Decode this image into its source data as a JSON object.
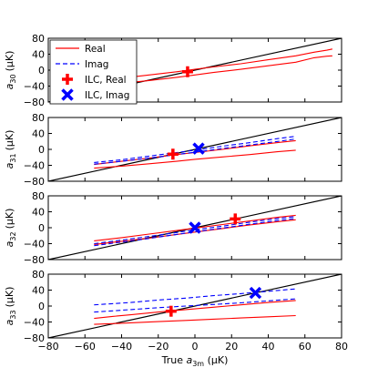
{
  "chart_data": [
    {
      "type": "line",
      "ylabel": "a30 (μK)",
      "ylabel_main": "a",
      "ylabel_sub": "30",
      "ylabel_unit": "(μK)",
      "xlim": [
        -80,
        80
      ],
      "ylim": [
        -80,
        80
      ],
      "xticks": [
        -80,
        -60,
        -40,
        -20,
        0,
        20,
        40,
        60,
        80
      ],
      "yticks": [
        -80,
        -40,
        0,
        40,
        80
      ],
      "grid": false,
      "legend": "top-left",
      "identity_line": {
        "x": [
          -80,
          80
        ],
        "y": [
          -80,
          80
        ]
      },
      "series": [
        {
          "name": "Real",
          "role": "band",
          "style": "solid",
          "color": "#ff0000",
          "x": [
            -55,
            -40,
            -25,
            -10,
            0,
            10,
            25,
            40,
            55,
            65,
            72,
            75
          ],
          "y": [
            -40,
            -33,
            -26,
            -18,
            -12,
            -6,
            2,
            11,
            20,
            31,
            35,
            36
          ]
        },
        {
          "name": "Real",
          "role": "band",
          "style": "solid",
          "color": "#ff0000",
          "x": [
            -55,
            -40,
            -25,
            -10,
            0,
            10,
            25,
            40,
            55,
            65,
            72,
            75
          ],
          "y": [
            -27,
            -20,
            -12,
            -4,
            2,
            8,
            16,
            26,
            36,
            45,
            50,
            53
          ]
        },
        {
          "name": "ILC, Real",
          "role": "marker",
          "marker": "plus",
          "color": "#ff0000",
          "x": [
            -4
          ],
          "y": [
            -4
          ]
        }
      ]
    },
    {
      "type": "line",
      "ylabel": "a31 (μK)",
      "ylabel_main": "a",
      "ylabel_sub": "31",
      "ylabel_unit": "(μK)",
      "xlim": [
        -80,
        80
      ],
      "ylim": [
        -80,
        80
      ],
      "xticks": [
        -80,
        -60,
        -40,
        -20,
        0,
        20,
        40,
        60,
        80
      ],
      "yticks": [
        -80,
        -40,
        0,
        40,
        80
      ],
      "identity_line": {
        "x": [
          -80,
          80
        ],
        "y": [
          -80,
          80
        ]
      },
      "series": [
        {
          "name": "Real",
          "role": "band",
          "style": "solid",
          "color": "#ff0000",
          "x": [
            -55,
            -40,
            -25,
            -10,
            0,
            15,
            30,
            45,
            55
          ],
          "y": [
            -47,
            -42,
            -36,
            -30,
            -25,
            -19,
            -13,
            -6,
            -2
          ]
        },
        {
          "name": "Real",
          "role": "band",
          "style": "solid",
          "color": "#ff0000",
          "x": [
            -55,
            -40,
            -25,
            -10,
            0,
            15,
            30,
            45,
            55
          ],
          "y": [
            -38,
            -30,
            -22,
            -13,
            -8,
            0,
            9,
            17,
            22
          ]
        },
        {
          "name": "Imag",
          "role": "band",
          "style": "dashed",
          "color": "#0000ff",
          "x": [
            -55,
            -40,
            -25,
            -10,
            0,
            15,
            30,
            45,
            55
          ],
          "y": [
            -37,
            -30,
            -22,
            -13,
            -7,
            2,
            11,
            20,
            26
          ]
        },
        {
          "name": "Imag",
          "role": "band",
          "style": "dashed",
          "color": "#0000ff",
          "x": [
            -55,
            -40,
            -25,
            -10,
            0,
            15,
            30,
            45,
            55
          ],
          "y": [
            -33,
            -26,
            -17,
            -8,
            -2,
            8,
            17,
            27,
            33
          ]
        },
        {
          "name": "ILC, Real",
          "role": "marker",
          "marker": "plus",
          "color": "#ff0000",
          "x": [
            -12
          ],
          "y": [
            -12
          ]
        },
        {
          "name": "ILC, Imag",
          "role": "marker",
          "marker": "x",
          "color": "#0000ff",
          "x": [
            2
          ],
          "y": [
            2
          ]
        }
      ]
    },
    {
      "type": "line",
      "ylabel": "a32 (μK)",
      "ylabel_main": "a",
      "ylabel_sub": "32",
      "ylabel_unit": "(μK)",
      "xlim": [
        -80,
        80
      ],
      "ylim": [
        -80,
        80
      ],
      "xticks": [
        -80,
        -60,
        -40,
        -20,
        0,
        20,
        40,
        60,
        80
      ],
      "yticks": [
        -80,
        -40,
        0,
        40,
        80
      ],
      "identity_line": {
        "x": [
          -80,
          80
        ],
        "y": [
          -80,
          80
        ]
      },
      "series": [
        {
          "name": "Real",
          "role": "band",
          "style": "solid",
          "color": "#ff0000",
          "x": [
            -55,
            -40,
            -25,
            -10,
            0,
            15,
            30,
            45,
            55
          ],
          "y": [
            -42,
            -34,
            -26,
            -17,
            -11,
            -2,
            7,
            15,
            20
          ]
        },
        {
          "name": "Real",
          "role": "band",
          "style": "solid",
          "color": "#ff0000",
          "x": [
            -55,
            -40,
            -25,
            -10,
            0,
            15,
            30,
            45,
            55
          ],
          "y": [
            -33,
            -25,
            -16,
            -7,
            -1,
            8,
            17,
            26,
            31
          ]
        },
        {
          "name": "Imag",
          "role": "band",
          "style": "dashed",
          "color": "#0000ff",
          "x": [
            -55,
            -40,
            -25,
            -10,
            0,
            15,
            30,
            45,
            55
          ],
          "y": [
            -45,
            -36,
            -27,
            -17,
            -10,
            -1,
            9,
            18,
            23
          ]
        },
        {
          "name": "Imag",
          "role": "band",
          "style": "dashed",
          "color": "#0000ff",
          "x": [
            -55,
            -40,
            -25,
            -10,
            0,
            15,
            30,
            45,
            55
          ],
          "y": [
            -40,
            -31,
            -22,
            -12,
            -5,
            4,
            14,
            23,
            28
          ]
        },
        {
          "name": "ILC, Real",
          "role": "marker",
          "marker": "plus",
          "color": "#ff0000",
          "x": [
            22
          ],
          "y": [
            22
          ]
        },
        {
          "name": "ILC, Imag",
          "role": "marker",
          "marker": "x",
          "color": "#0000ff",
          "x": [
            0
          ],
          "y": [
            0
          ]
        }
      ]
    },
    {
      "type": "line",
      "xlabel": "True a3m (μK)",
      "xlabel_main": "True ",
      "xlabel_var": "a",
      "xlabel_sub": "3m",
      "xlabel_unit": " (μK)",
      "ylabel": "a33 (μK)",
      "ylabel_main": "a",
      "ylabel_sub": "33",
      "ylabel_unit": "(μK)",
      "xlim": [
        -80,
        80
      ],
      "ylim": [
        -80,
        80
      ],
      "xticks": [
        -80,
        -60,
        -40,
        -20,
        0,
        20,
        40,
        60,
        80
      ],
      "yticks": [
        -80,
        -40,
        0,
        40,
        80
      ],
      "identity_line": {
        "x": [
          -80,
          80
        ],
        "y": [
          -80,
          80
        ]
      },
      "series": [
        {
          "name": "Real",
          "role": "band",
          "style": "solid",
          "color": "#ff0000",
          "x": [
            -55,
            -45,
            -35,
            -20,
            -5,
            10,
            25,
            40,
            55
          ],
          "y": [
            -46,
            -44,
            -42,
            -39,
            -36,
            -33,
            -30,
            -27,
            -24
          ]
        },
        {
          "name": "Real",
          "role": "band",
          "style": "solid",
          "color": "#ff0000",
          "x": [
            -55,
            -45,
            -35,
            -20,
            -5,
            10,
            25,
            40,
            55
          ],
          "y": [
            -31,
            -26,
            -22,
            -15,
            -9,
            -3,
            3,
            9,
            14
          ]
        },
        {
          "name": "Imag",
          "role": "band",
          "style": "dashed",
          "color": "#0000ff",
          "x": [
            -55,
            -45,
            -35,
            -20,
            -5,
            10,
            25,
            40,
            55
          ],
          "y": [
            -15,
            -12,
            -9,
            -4,
            0,
            4,
            8,
            13,
            18
          ]
        },
        {
          "name": "Imag",
          "role": "band",
          "style": "dashed",
          "color": "#0000ff",
          "x": [
            -55,
            -45,
            -35,
            -20,
            -5,
            10,
            25,
            40,
            55
          ],
          "y": [
            3,
            6,
            9,
            15,
            20,
            26,
            31,
            37,
            43
          ]
        },
        {
          "name": "ILC, Real",
          "role": "marker",
          "marker": "plus",
          "color": "#ff0000",
          "x": [
            -13
          ],
          "y": [
            -13
          ]
        },
        {
          "name": "ILC, Imag",
          "role": "marker",
          "marker": "x",
          "color": "#0000ff",
          "x": [
            33
          ],
          "y": [
            33
          ]
        }
      ]
    }
  ],
  "legend": {
    "items": [
      {
        "label": "Real",
        "kind": "line-solid",
        "color": "#ff0000"
      },
      {
        "label": "Imag",
        "kind": "line-dashed",
        "color": "#0000ff"
      },
      {
        "label": "ILC, Real",
        "kind": "plus",
        "color": "#ff0000"
      },
      {
        "label": "ILC, Imag",
        "kind": "x",
        "color": "#0000ff"
      }
    ]
  }
}
